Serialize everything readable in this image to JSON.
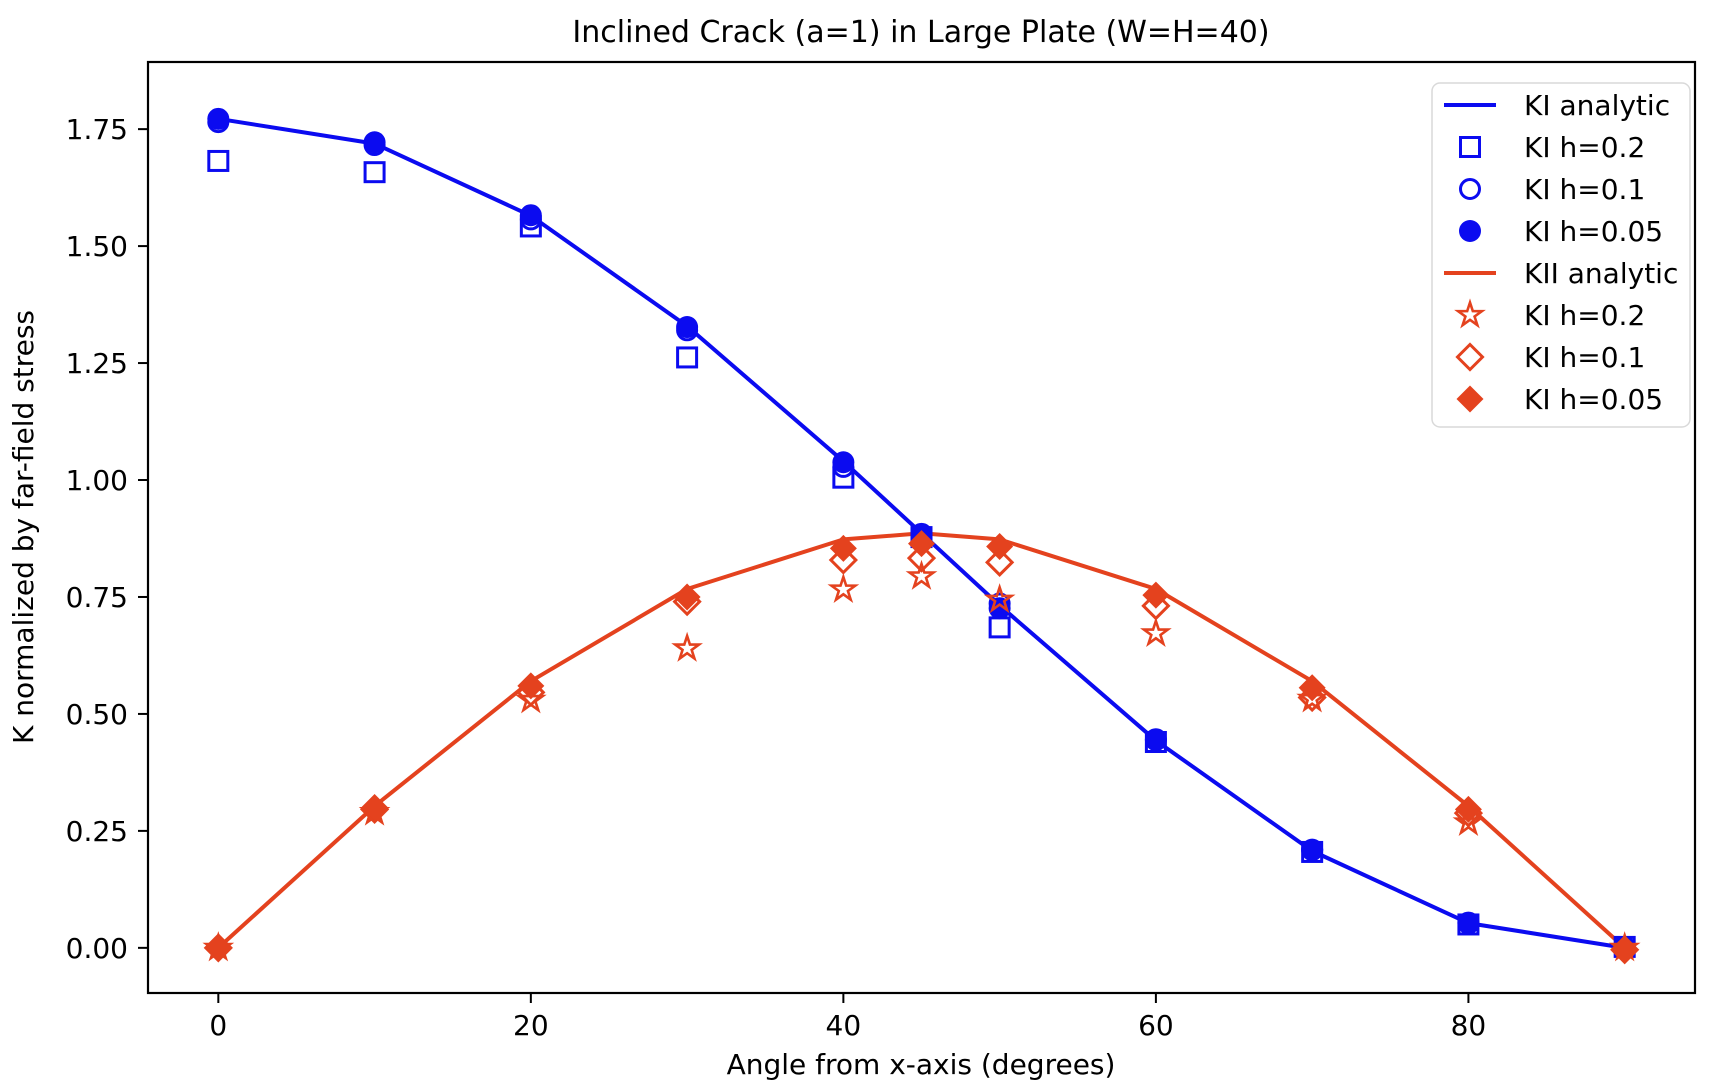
{
  "colors": {
    "blue": "#0b0bf0",
    "red": "#e4421e",
    "frame": "#000000",
    "legend_border": "#d9d9d9",
    "background": "#ffffff",
    "text": "#000000"
  },
  "chart_data": {
    "type": "line",
    "title": "Inclined Crack (a=1) in Large Plate (W=H=40)",
    "xlabel": "Angle from x-axis (degrees)",
    "ylabel": "K normalized by far-field stress",
    "xlim": [
      -4.5,
      94.5
    ],
    "ylim": [
      -0.0965,
      1.8935
    ],
    "grid": false,
    "legend_position": "upper right",
    "xticks": {
      "values": [
        0,
        20,
        40,
        60,
        80
      ],
      "labels": [
        "0",
        "20",
        "40",
        "60",
        "80"
      ]
    },
    "yticks": {
      "values": [
        0.0,
        0.25,
        0.5,
        0.75,
        1.0,
        1.25,
        1.5,
        1.75
      ],
      "labels": [
        "0.00",
        "0.25",
        "0.50",
        "0.75",
        "1.00",
        "1.25",
        "1.50",
        "1.75"
      ]
    },
    "angles": [
      0,
      10,
      20,
      30,
      40,
      45,
      50,
      60,
      70,
      80,
      90
    ],
    "series": [
      {
        "name": "KI analytic",
        "kind": "line",
        "marker": "none",
        "color": "blue",
        "values": [
          1.772,
          1.719,
          1.565,
          1.329,
          1.04,
          0.886,
          0.732,
          0.443,
          0.207,
          0.053,
          0.0
        ]
      },
      {
        "name": "KII analytic",
        "kind": "line",
        "marker": "none",
        "color": "red",
        "values": [
          0.0,
          0.303,
          0.57,
          0.767,
          0.873,
          0.886,
          0.873,
          0.767,
          0.57,
          0.303,
          0.0
        ]
      },
      {
        "name": "KI h=0.2",
        "kind": "markers",
        "marker": "square-open",
        "color": "blue",
        "values": [
          1.682,
          1.658,
          1.542,
          1.262,
          1.005,
          0.878,
          0.685,
          0.44,
          0.205,
          0.05,
          0.002
        ]
      },
      {
        "name": "KI h=0.1",
        "kind": "markers",
        "marker": "circle-open",
        "color": "blue",
        "values": [
          1.765,
          1.716,
          1.557,
          1.32,
          1.028,
          0.882,
          0.736,
          0.444,
          0.209,
          0.052,
          0.002
        ]
      },
      {
        "name": "KI h=0.05",
        "kind": "markers",
        "marker": "circle-filled",
        "color": "blue",
        "values": [
          1.772,
          1.722,
          1.566,
          1.327,
          1.038,
          0.885,
          0.726,
          0.446,
          0.21,
          0.054,
          0.002
        ]
      },
      {
        "name": "KI h=0.2",
        "kind": "markers",
        "marker": "star-open",
        "color": "red",
        "values": [
          0.0,
          0.29,
          0.53,
          0.64,
          0.766,
          0.794,
          0.744,
          0.672,
          0.532,
          0.268,
          0.0
        ]
      },
      {
        "name": "KI h=0.1",
        "kind": "markers",
        "marker": "diamond-open",
        "color": "red",
        "values": [
          0.0,
          0.296,
          0.546,
          0.74,
          0.829,
          0.833,
          0.824,
          0.731,
          0.535,
          0.288,
          -0.004
        ]
      },
      {
        "name": "KI h=0.05",
        "kind": "markers",
        "marker": "diamond-filled",
        "color": "red",
        "values": [
          0.0,
          0.3,
          0.56,
          0.75,
          0.854,
          0.864,
          0.858,
          0.754,
          0.556,
          0.296,
          -0.004
        ]
      }
    ],
    "legend_order": [
      0,
      2,
      3,
      4,
      1,
      5,
      6,
      7
    ]
  }
}
